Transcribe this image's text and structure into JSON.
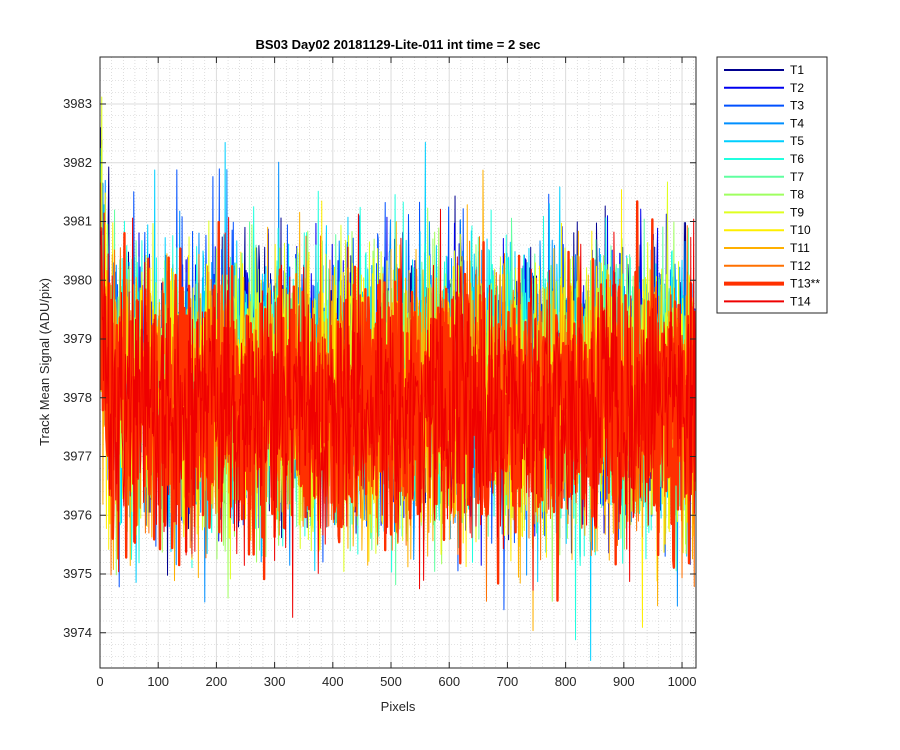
{
  "chart_data": {
    "type": "line",
    "title": "BS03 Day02 20181129-Lite-011 int time = 2 sec",
    "xlabel": "Pixels",
    "ylabel": "Track Mean Signal (ADU/pix)",
    "xlim": [
      0,
      1024
    ],
    "ylim": [
      3973.4,
      3983.8
    ],
    "x_ticks": [
      0,
      100,
      200,
      300,
      400,
      500,
      600,
      700,
      800,
      900,
      1000
    ],
    "x_tick_labels": [
      "0",
      "100",
      "200",
      "300",
      "400",
      "500",
      "600",
      "700",
      "800",
      "900",
      "1000"
    ],
    "y_ticks": [
      3974,
      3975,
      3976,
      3977,
      3978,
      3979,
      3980,
      3981,
      3982,
      3983
    ],
    "y_tick_labels": [
      "3974",
      "3975",
      "3976",
      "3977",
      "3978",
      "3979",
      "3980",
      "3981",
      "3982",
      "3983"
    ],
    "grid": "major and minor",
    "legend_position": "outside-right",
    "series": [
      {
        "name": "T1",
        "color": "#00008f",
        "mean": 3978.3,
        "spread": 1.5,
        "highlight": false
      },
      {
        "name": "T2",
        "color": "#0000ef",
        "mean": 3978.3,
        "spread": 1.5,
        "highlight": false
      },
      {
        "name": "T3",
        "color": "#0050ff",
        "mean": 3978.2,
        "spread": 1.5,
        "highlight": false
      },
      {
        "name": "T4",
        "color": "#008fff",
        "mean": 3978.2,
        "spread": 1.5,
        "highlight": false
      },
      {
        "name": "T5",
        "color": "#00cfff",
        "mean": 3978.2,
        "spread": 1.5,
        "highlight": false
      },
      {
        "name": "T6",
        "color": "#20ffdf",
        "mean": 3978.1,
        "spread": 1.5,
        "highlight": false
      },
      {
        "name": "T7",
        "color": "#60ffa0",
        "mean": 3978.1,
        "spread": 1.5,
        "highlight": false
      },
      {
        "name": "T8",
        "color": "#9fff60",
        "mean": 3978.1,
        "spread": 1.5,
        "highlight": false
      },
      {
        "name": "T9",
        "color": "#dfff20",
        "mean": 3978.0,
        "spread": 1.5,
        "highlight": false
      },
      {
        "name": "T10",
        "color": "#ffef00",
        "mean": 3978.0,
        "spread": 1.5,
        "highlight": false
      },
      {
        "name": "T11",
        "color": "#ffb000",
        "mean": 3977.9,
        "spread": 1.5,
        "highlight": false
      },
      {
        "name": "T12",
        "color": "#ff7000",
        "mean": 3977.9,
        "spread": 1.5,
        "highlight": false
      },
      {
        "name": "T13**",
        "color": "#ff3000",
        "mean": 3977.8,
        "spread": 1.5,
        "highlight": true
      },
      {
        "name": "T14",
        "color": "#ef0000",
        "mean": 3977.8,
        "spread": 1.5,
        "highlight": false
      }
    ]
  }
}
